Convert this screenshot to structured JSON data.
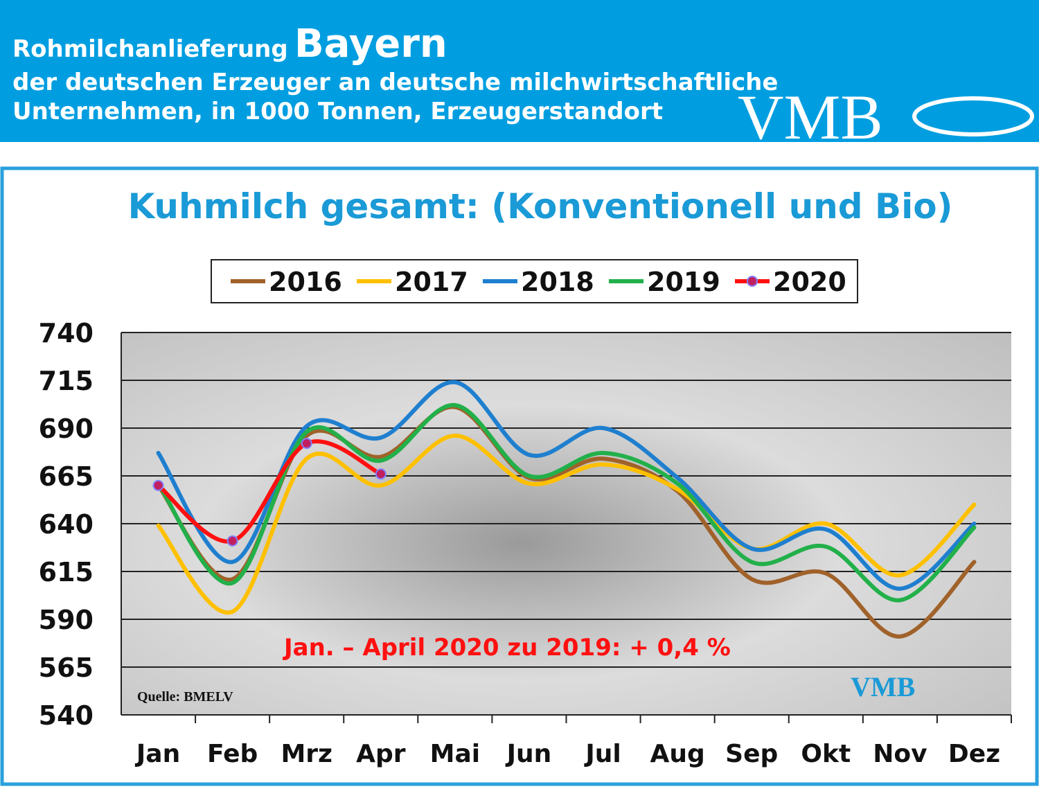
{
  "header": {
    "title": "Rohmilchanlieferung",
    "region": "Bayern",
    "lines": [
      "der deutschen Erzeuger an deutsche milchwirtschaftliche",
      "Unternehmen, in 1000 Tonnen, Erzeugerstandort"
    ],
    "logo": "VMB"
  },
  "chart_data": {
    "type": "line",
    "title": "Kuhmilch gesamt: (Konventionell und Bio)",
    "categories": [
      "Jan",
      "Feb",
      "Mrz",
      "Apr",
      "Mai",
      "Jun",
      "Jul",
      "Aug",
      "Sep",
      "Okt",
      "Nov",
      "Dez"
    ],
    "series": [
      {
        "name": "2016",
        "color": "#a0622a",
        "values": [
          660,
          611,
          686,
          675,
          701,
          664,
          674,
          657,
          611,
          614,
          581,
          620
        ]
      },
      {
        "name": "2017",
        "color": "#ffc000",
        "values": [
          639,
          594,
          674,
          660,
          686,
          661,
          671,
          658,
          627,
          640,
          613,
          650
        ]
      },
      {
        "name": "2018",
        "color": "#1f7fcf",
        "values": [
          677,
          620,
          691,
          685,
          714,
          676,
          690,
          664,
          627,
          637,
          606,
          640
        ]
      },
      {
        "name": "2019",
        "color": "#22b04a",
        "values": [
          661,
          609,
          688,
          673,
          702,
          665,
          677,
          661,
          620,
          628,
          600,
          638
        ]
      },
      {
        "name": "2020",
        "color": "#ff1010",
        "marker": true,
        "values": [
          660,
          631,
          682,
          666,
          null,
          null,
          null,
          null,
          null,
          null,
          null,
          null
        ]
      }
    ],
    "ylim": [
      540,
      740
    ],
    "yticks": [
      540,
      565,
      590,
      615,
      640,
      665,
      690,
      715,
      740
    ],
    "grid": true,
    "annotation": "Jan. – April  2020 zu 2019:  + 0,4 %",
    "source": "Quelle: BMELV"
  }
}
